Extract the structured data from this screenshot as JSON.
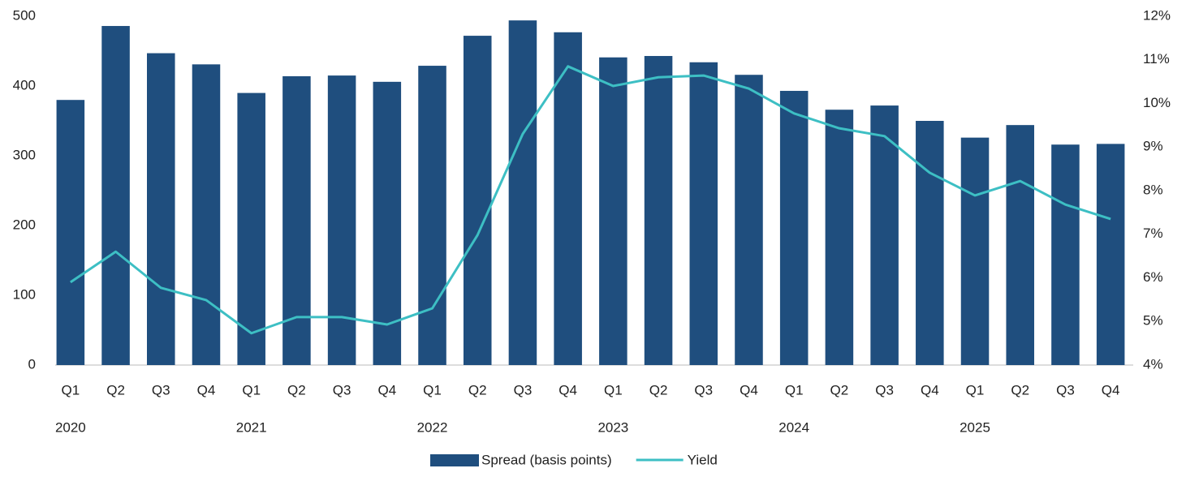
{
  "chart_data": {
    "type": "bar_line",
    "categories": [
      "Q1",
      "Q2",
      "Q3",
      "Q4",
      "Q1",
      "Q2",
      "Q3",
      "Q4",
      "Q1",
      "Q2",
      "Q3",
      "Q4",
      "Q1",
      "Q2",
      "Q3",
      "Q4",
      "Q1",
      "Q2",
      "Q3",
      "Q4",
      "Q1",
      "Q2",
      "Q3",
      "Q4"
    ],
    "years": [
      "2020",
      "2021",
      "2022",
      "2023",
      "2024",
      "2025"
    ],
    "series": [
      {
        "name": "Spread (basis points)",
        "color": "#1f4e7e",
        "type": "bar",
        "values": [
          380,
          486,
          447,
          431,
          390,
          414,
          415,
          406,
          429,
          472,
          494,
          477,
          441,
          443,
          434,
          416,
          393,
          366,
          372,
          350,
          326,
          344,
          316,
          317
        ]
      },
      {
        "name": "Yield",
        "color": "#3dbfc4",
        "type": "line",
        "axis": "y2",
        "values": [
          5.9,
          6.6,
          5.77,
          5.49,
          4.73,
          5.1,
          5.1,
          4.93,
          5.3,
          6.98,
          9.3,
          10.85,
          10.4,
          10.6,
          10.64,
          10.34,
          9.77,
          9.43,
          9.25,
          8.41,
          7.89,
          8.22,
          7.68,
          7.35
        ]
      }
    ],
    "ylim": [
      0,
      500
    ],
    "yticks": [
      0,
      100,
      200,
      300,
      400,
      500
    ],
    "y2lim": [
      4,
      12
    ],
    "y2ticks": [
      {
        "value": 4,
        "label": "4%"
      },
      {
        "value": 5,
        "label": "5%"
      },
      {
        "value": 6,
        "label": "6%"
      },
      {
        "value": 7,
        "label": "7%"
      },
      {
        "value": 8,
        "label": "8%"
      },
      {
        "value": 9,
        "label": "9%"
      },
      {
        "value": 10,
        "label": "10%"
      },
      {
        "value": 11,
        "label": "11%"
      },
      {
        "value": 12,
        "label": "12%"
      }
    ],
    "legend": "bottom"
  }
}
